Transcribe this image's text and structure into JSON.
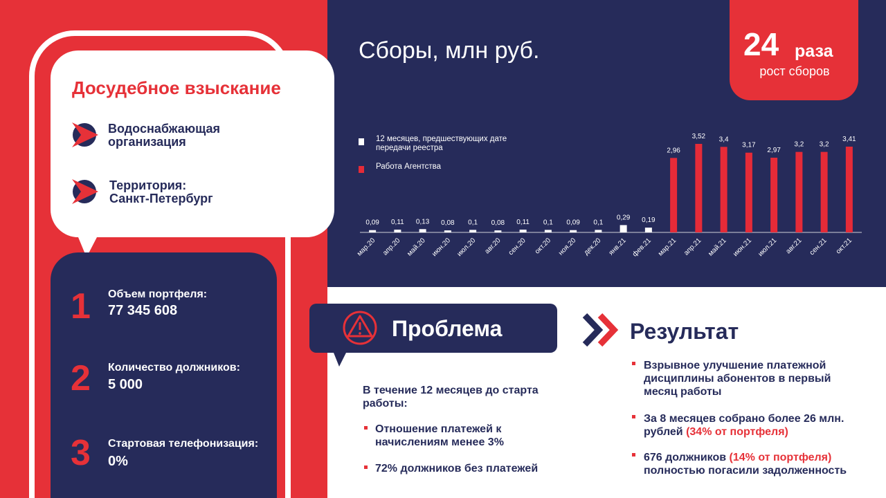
{
  "left": {
    "title": "Досудебное взыскание",
    "items": [
      {
        "lines": [
          "Водоснабжающая",
          "организация"
        ]
      },
      {
        "lines": [
          "Территория:",
          "Санкт-Петербург"
        ]
      }
    ]
  },
  "stats": [
    {
      "number": "1",
      "label": "Объем портфеля:",
      "value": "77 345 608"
    },
    {
      "number": "2",
      "label": "Количество должников:",
      "value": "5 000"
    },
    {
      "number": "3",
      "label": "Стартовая телефонизация:",
      "value": "0%"
    }
  ],
  "growth": {
    "number": "24",
    "unit": "раза",
    "caption": "рост сборов"
  },
  "chart_data": {
    "type": "bar",
    "title": "Сборы, млн руб.",
    "categories": [
      "мар.20",
      "апр.20",
      "май.20",
      "июн.20",
      "июл.20",
      "авг.20",
      "сен.20",
      "окт.20",
      "ноя.20",
      "дек.20",
      "янв.21",
      "фев.21",
      "мар.21",
      "апр.21",
      "май.21",
      "июн.21",
      "июл.21",
      "авг.21",
      "сен.21",
      "окт.21"
    ],
    "series": [
      {
        "name": "12 месяцев, предшествующих дате передачи реестра",
        "color": "#ffffff",
        "values": [
          0.09,
          0.11,
          0.13,
          0.08,
          0.1,
          0.08,
          0.11,
          0.1,
          0.09,
          0.1,
          0.29,
          0.19,
          null,
          null,
          null,
          null,
          null,
          null,
          null,
          null
        ],
        "value_labels": [
          "0,09",
          "0,11",
          "0,13",
          "0,08",
          "0,1",
          "0,08",
          "0,11",
          "0,1",
          "0,09",
          "0,1",
          "0,29",
          "0,19",
          null,
          null,
          null,
          null,
          null,
          null,
          null,
          null
        ]
      },
      {
        "name": "Работа Агентства",
        "color": "#e52b38",
        "values": [
          null,
          null,
          null,
          null,
          null,
          null,
          null,
          null,
          null,
          null,
          null,
          null,
          2.96,
          3.52,
          3.4,
          3.17,
          2.97,
          3.2,
          3.2,
          3.41
        ],
        "value_labels": [
          null,
          null,
          null,
          null,
          null,
          null,
          null,
          null,
          null,
          null,
          null,
          null,
          "2,96",
          "3,52",
          "3,4",
          "3,17",
          "2,97",
          "3,2",
          "3,2",
          "3,41"
        ]
      }
    ]
  },
  "problem": {
    "title": "Проблема",
    "intro_lines": [
      "В течение 12 месяцев до старта",
      "работы:"
    ],
    "bullets": [
      {
        "lines": [
          "Отношение платежей к",
          "начислениям менее 3%"
        ]
      },
      {
        "lines": [
          "72% должников без платежей"
        ]
      }
    ]
  },
  "result": {
    "title": "Результат",
    "bullets": [
      {
        "lines": [
          {
            "text": "Взрывное улучшение платежной"
          },
          {
            "text": "дисциплины абонентов в первый"
          },
          {
            "text": "месяц работы"
          }
        ]
      },
      {
        "lines": [
          {
            "text": "За 8 месяцев собрано более 26 млн."
          },
          {
            "text": "рублей ",
            "red": "(34% от портфеля)"
          }
        ]
      },
      {
        "lines": [
          {
            "text": "676 должников ",
            "red": "(14% от портфеля)"
          },
          {
            "text": "полностью погасили задолженность"
          }
        ]
      }
    ]
  }
}
